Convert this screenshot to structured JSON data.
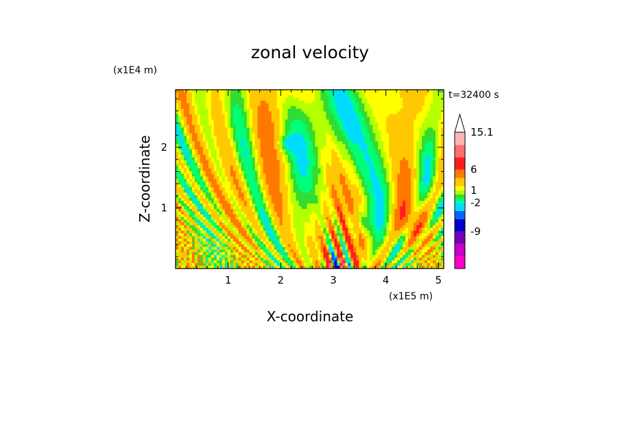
{
  "chart_data": {
    "type": "heatmap",
    "title": "zonal velocity",
    "xlabel": "X-coordinate",
    "ylabel": "Z-coordinate",
    "x_scale_label": "(x1E5 m)",
    "y_scale_label": "(x1E4 m)",
    "time_label": "t=32400 s",
    "xlim": [
      0.0,
      5.1
    ],
    "ylim": [
      0.0,
      2.95
    ],
    "x_ticks": [
      1,
      2,
      3,
      4,
      5
    ],
    "y_ticks": [
      1,
      2
    ],
    "colorbar": {
      "tick_labels": [
        "15.1",
        "6",
        "1",
        "-2",
        "-9"
      ],
      "tick_values": [
        15.1,
        6,
        1,
        -2,
        -9
      ],
      "levels": [
        -15,
        -12,
        -9,
        -6,
        -4,
        -2,
        -1,
        0,
        1,
        2,
        4,
        6,
        9,
        12,
        15.1
      ],
      "colors": [
        "#ff00c8",
        "#c800c8",
        "#7800b4",
        "#0000c8",
        "#0064ff",
        "#00dcff",
        "#00ff78",
        "#32dc32",
        "#b4ff00",
        "#ffff00",
        "#ffc800",
        "#ff7800",
        "#ff1e1e",
        "#ff6e6e",
        "#ffb4b4",
        "#ffffff"
      ],
      "extend": "max"
    },
    "grid": false,
    "legend": "right"
  }
}
